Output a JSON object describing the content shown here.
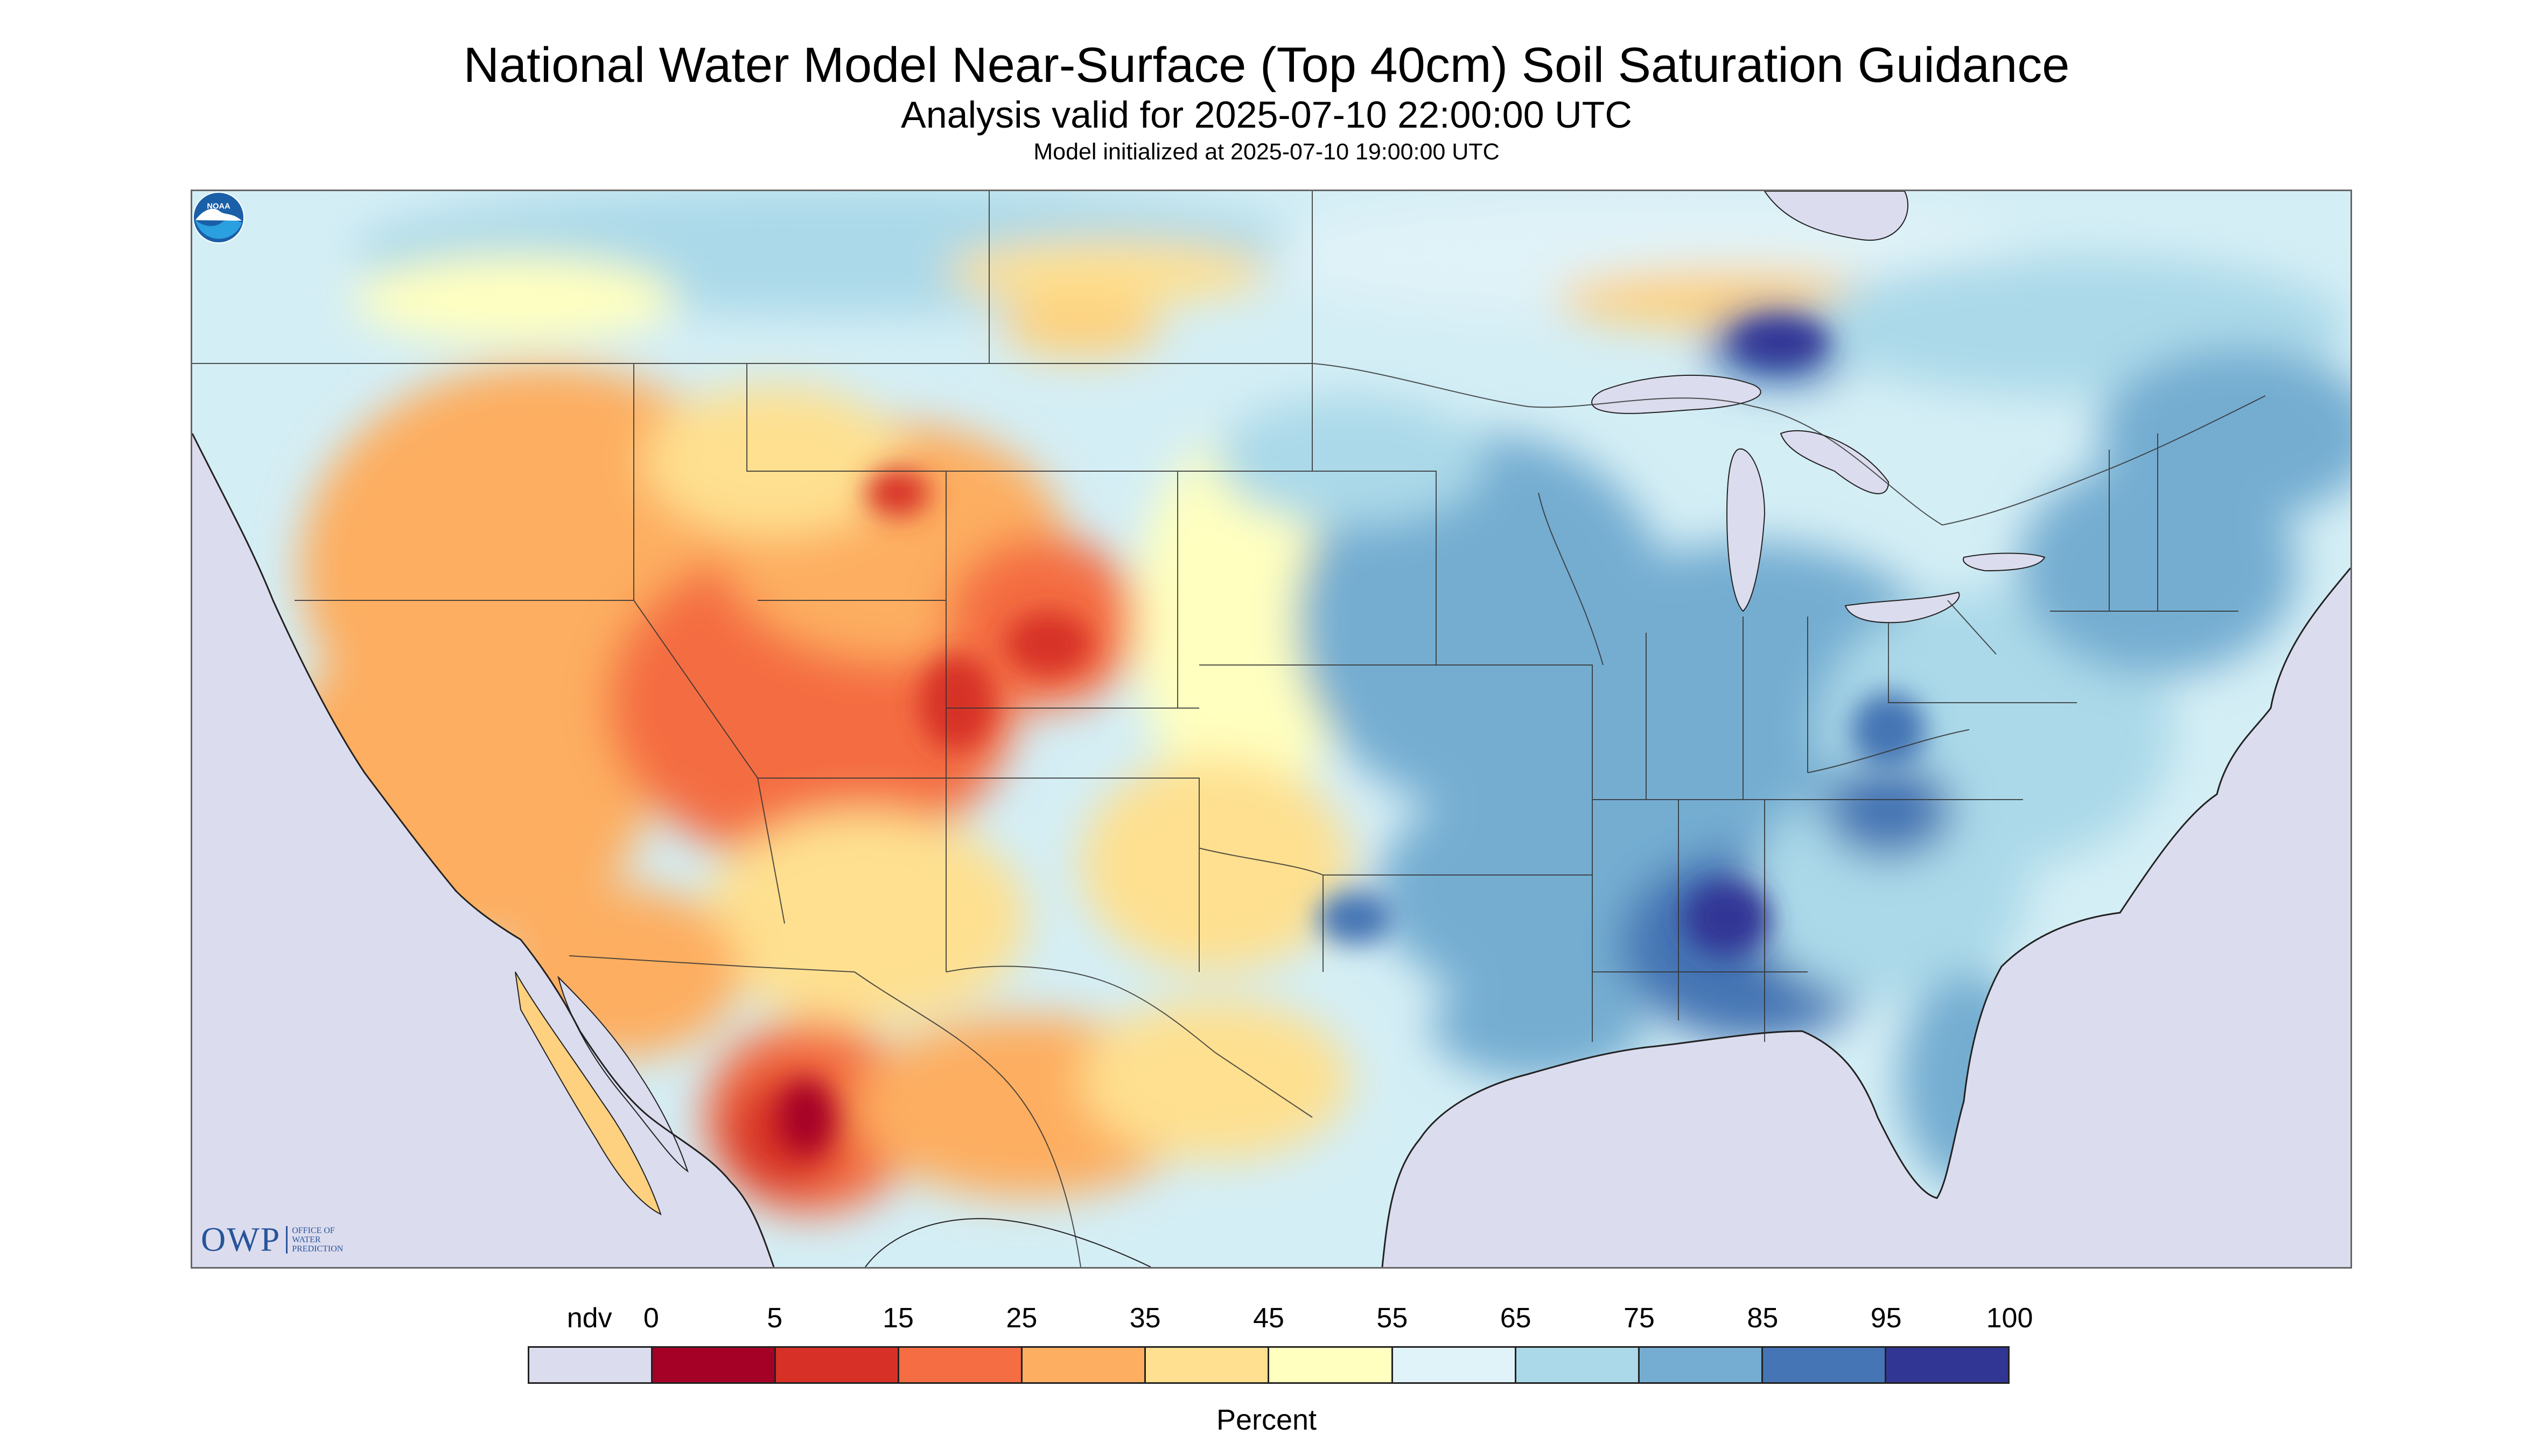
{
  "header": {
    "title": "National Water Model Near-Surface (Top 40cm) Soil Saturation Guidance",
    "subtitle": "Analysis valid for 2025-07-10 22:00:00 UTC",
    "init": "Model initialized at 2025-07-10 19:00:00 UTC"
  },
  "map": {
    "region": "Contiguous United States with parts of Canada and Mexico",
    "variable": "near-surface soil saturation",
    "no_data_color": "#dcdcef",
    "ocean_color": "#dcdcef",
    "dry_regions_summary": [
      "Great Basin",
      "Four Corners",
      "Colorado / Wyoming",
      "Northwestern Mexico"
    ],
    "wet_regions_summary": [
      "Upper Midwest",
      "Ohio Valley",
      "Southeast",
      "Northeast",
      "Western Ontario"
    ]
  },
  "logos": {
    "owp_text": "OWP",
    "owp_sub": [
      "OFFICE OF",
      "WATER",
      "PREDICTION"
    ],
    "noaa_text": "NOAA"
  },
  "legend": {
    "title": "Percent",
    "labels": [
      "ndv",
      "0",
      "5",
      "15",
      "25",
      "35",
      "45",
      "55",
      "65",
      "75",
      "85",
      "95",
      "100"
    ],
    "colors": [
      "#dcdcef",
      "#a50026",
      "#d73027",
      "#f46d43",
      "#fdae61",
      "#fee090",
      "#ffffbf",
      "#e0f3f8",
      "#abd9e9",
      "#74add1",
      "#4575b4",
      "#313695"
    ]
  }
}
